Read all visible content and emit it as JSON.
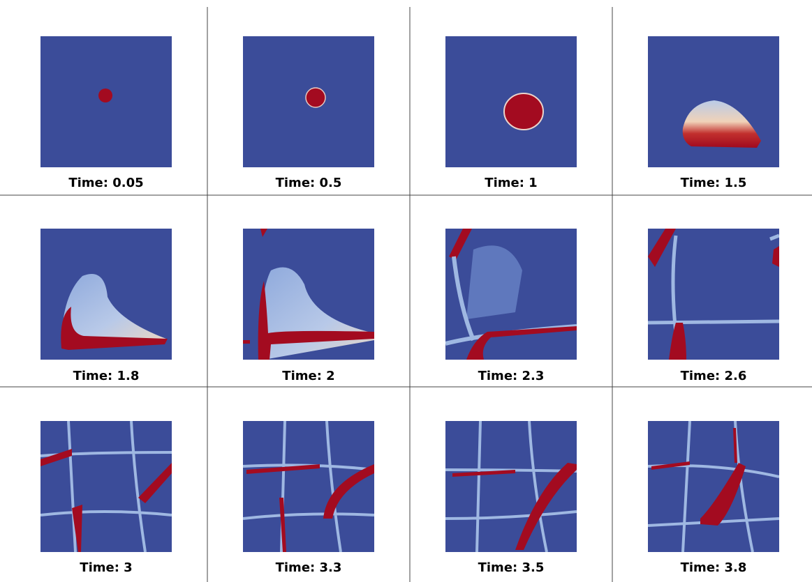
{
  "panels": [
    {
      "label": "Time: 0.05"
    },
    {
      "label": "Time: 0.5"
    },
    {
      "label": "Time: 1"
    },
    {
      "label": "Time: 1.5"
    },
    {
      "label": "Time: 1.8"
    },
    {
      "label": "Time: 2"
    },
    {
      "label": "Time: 2.3"
    },
    {
      "label": "Time: 2.6"
    },
    {
      "label": "Time: 3"
    },
    {
      "label": "Time: 3.3"
    },
    {
      "label": "Time: 3.5"
    },
    {
      "label": "Time: 3.8"
    }
  ]
}
